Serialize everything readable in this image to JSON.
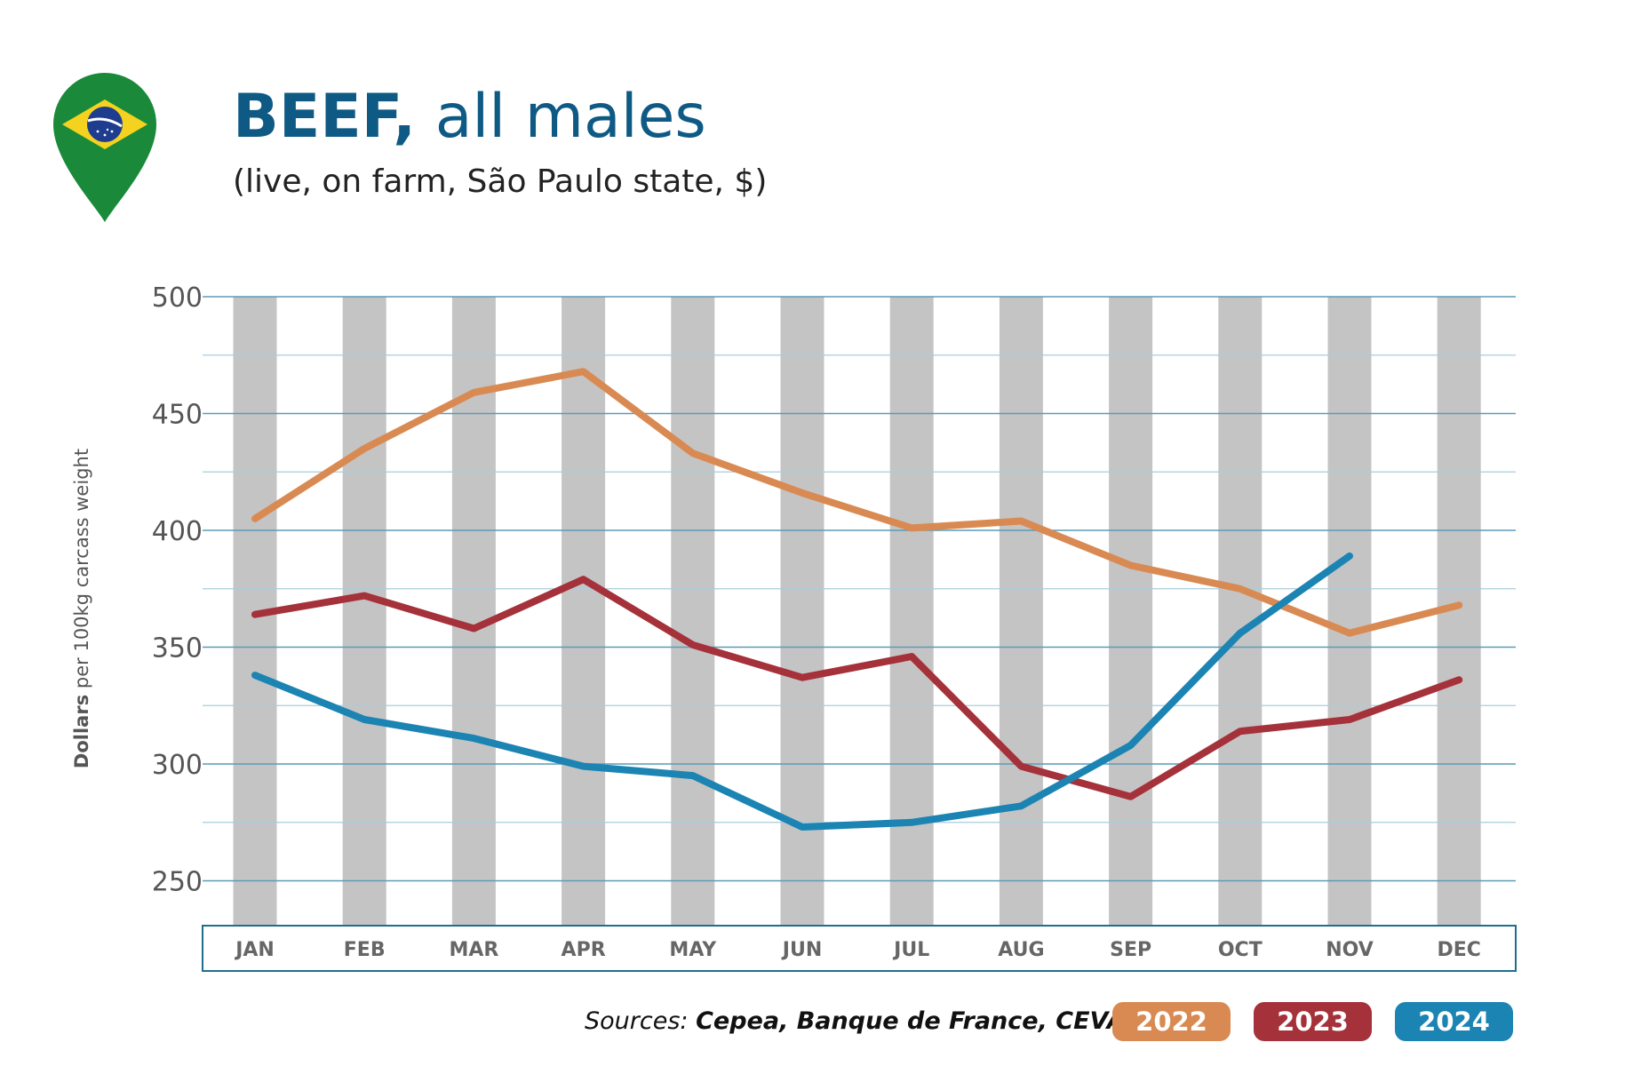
{
  "header": {
    "title_bold": "BEEF,",
    "title_rest": " all males",
    "subtitle": "(live, on farm, São Paulo state, $)",
    "icon": "brazil-flag-map-pin-icon"
  },
  "sources": {
    "prefix": "Sources: ",
    "names": "Cepea, Banque de France, CEVA"
  },
  "ylabel": {
    "bold": "Dollars",
    "rest": " per 100kg carcass weight"
  },
  "colors": {
    "2022": "#d98a52",
    "2023": "#a5313a",
    "2024": "#1b84b3",
    "axis": "#1f6e8c",
    "band": "#c4c4c4"
  },
  "chart_data": {
    "type": "line",
    "categories": [
      "JAN",
      "FEB",
      "MAR",
      "APR",
      "MAY",
      "JUN",
      "JUL",
      "AUG",
      "SEP",
      "OCT",
      "NOV",
      "DEC"
    ],
    "ylim": [
      230,
      500
    ],
    "yticks": [
      250,
      300,
      350,
      400,
      450,
      500
    ],
    "ylabel": "Dollars per 100kg carcass weight",
    "legend_position": "bottom-right",
    "series": [
      {
        "name": "2022",
        "color": "#d98a52",
        "values": [
          405,
          435,
          459,
          468,
          433,
          416,
          401,
          404,
          385,
          375,
          356,
          368
        ]
      },
      {
        "name": "2023",
        "color": "#a5313a",
        "values": [
          364,
          372,
          358,
          379,
          351,
          337,
          346,
          299,
          286,
          314,
          319,
          336
        ]
      },
      {
        "name": "2024",
        "color": "#1b84b3",
        "values": [
          338,
          319,
          311,
          299,
          295,
          273,
          275,
          282,
          308,
          356,
          389,
          null
        ]
      }
    ]
  }
}
